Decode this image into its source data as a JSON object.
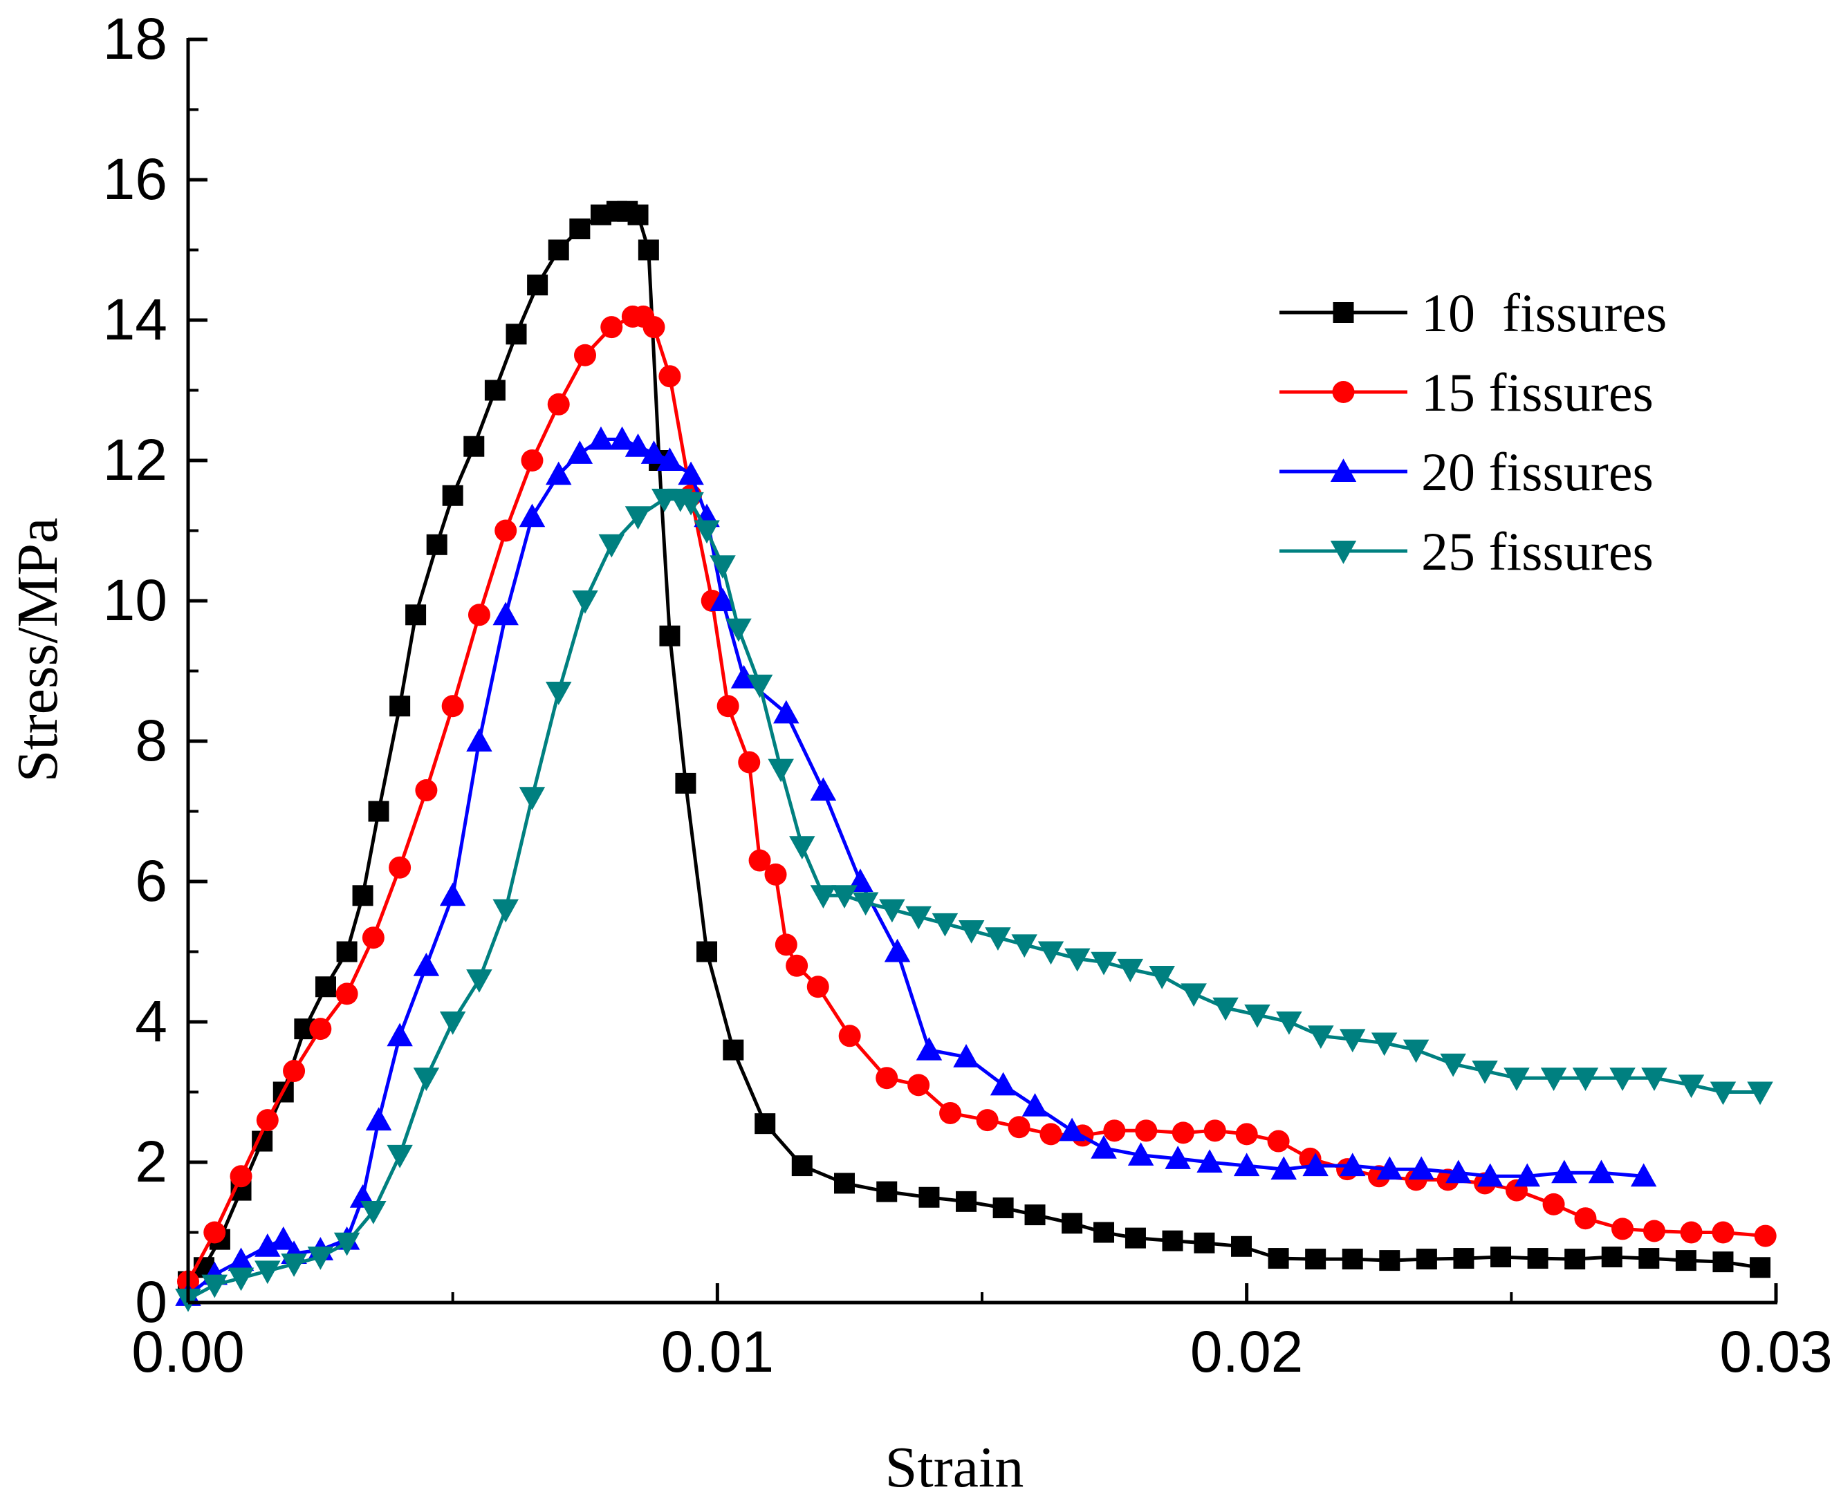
{
  "chart_data": {
    "type": "line",
    "title": "",
    "xlabel": "Strain",
    "ylabel": "Stress/MPa",
    "xlim": [
      0,
      0.03
    ],
    "ylim": [
      0,
      18
    ],
    "xticks": [
      0,
      0.01,
      0.02,
      0.03
    ],
    "xtick_labels": [
      "0.00",
      "0.01",
      "0.02",
      "0.03"
    ],
    "yticks": [
      0,
      2,
      4,
      6,
      8,
      10,
      12,
      14,
      16,
      18
    ],
    "ytick_labels": [
      "0",
      "2",
      "4",
      "6",
      "8",
      "10",
      "12",
      "14",
      "16",
      "18"
    ],
    "grid": false,
    "legend_position": "top-right",
    "series": [
      {
        "name": "10  fissures",
        "color": "#000000",
        "marker": "square",
        "x": [
          0.0,
          0.0003,
          0.0006,
          0.001,
          0.0014,
          0.0018,
          0.0022,
          0.0026,
          0.003,
          0.0033,
          0.0036,
          0.004,
          0.0043,
          0.0047,
          0.005,
          0.0054,
          0.0058,
          0.0062,
          0.0066,
          0.007,
          0.0074,
          0.0078,
          0.0081,
          0.0083,
          0.0085,
          0.0087,
          0.0089,
          0.0091,
          0.0094,
          0.0098,
          0.0103,
          0.0109,
          0.0116,
          0.0124,
          0.0132,
          0.014,
          0.0147,
          0.0154,
          0.016,
          0.0167,
          0.0173,
          0.0179,
          0.0186,
          0.0192,
          0.0199,
          0.0206,
          0.0213,
          0.022,
          0.0227,
          0.0234,
          0.0241,
          0.0248,
          0.0255,
          0.0262,
          0.0269,
          0.0276,
          0.0283,
          0.029,
          0.0297
        ],
        "y": [
          0.3,
          0.5,
          0.9,
          1.6,
          2.3,
          3.0,
          3.9,
          4.5,
          5.0,
          5.8,
          7.0,
          8.5,
          9.8,
          10.8,
          11.5,
          12.2,
          13.0,
          13.8,
          14.5,
          15.0,
          15.3,
          15.5,
          15.55,
          15.55,
          15.5,
          15.0,
          12.0,
          9.5,
          7.4,
          5.0,
          3.6,
          2.55,
          1.95,
          1.7,
          1.58,
          1.5,
          1.44,
          1.35,
          1.25,
          1.13,
          1.0,
          0.92,
          0.88,
          0.85,
          0.8,
          0.63,
          0.62,
          0.62,
          0.6,
          0.62,
          0.63,
          0.65,
          0.63,
          0.62,
          0.65,
          0.63,
          0.6,
          0.58,
          0.5
        ]
      },
      {
        "name": "15 fissures",
        "color": "#ff0000",
        "marker": "circle",
        "x": [
          0.0,
          0.0005,
          0.001,
          0.0015,
          0.002,
          0.0025,
          0.003,
          0.0035,
          0.004,
          0.0045,
          0.005,
          0.0055,
          0.006,
          0.0065,
          0.007,
          0.0075,
          0.008,
          0.0084,
          0.0086,
          0.0088,
          0.0091,
          0.0095,
          0.0099,
          0.0102,
          0.0106,
          0.0108,
          0.0111,
          0.0113,
          0.0115,
          0.0119,
          0.0125,
          0.0132,
          0.0138,
          0.0144,
          0.0151,
          0.0157,
          0.0163,
          0.0169,
          0.0175,
          0.0181,
          0.0188,
          0.0194,
          0.02,
          0.0206,
          0.0212,
          0.0219,
          0.0225,
          0.0232,
          0.0238,
          0.0245,
          0.0251,
          0.0258,
          0.0264,
          0.0271,
          0.0277,
          0.0284,
          0.029,
          0.0298
        ],
        "y": [
          0.3,
          1.0,
          1.8,
          2.6,
          3.3,
          3.9,
          4.4,
          5.2,
          6.2,
          7.3,
          8.5,
          9.8,
          11.0,
          12.0,
          12.8,
          13.5,
          13.9,
          14.05,
          14.05,
          13.9,
          13.2,
          11.5,
          10.0,
          8.5,
          7.7,
          6.3,
          6.1,
          5.1,
          4.8,
          4.5,
          3.8,
          3.2,
          3.1,
          2.7,
          2.6,
          2.5,
          2.4,
          2.38,
          2.45,
          2.45,
          2.42,
          2.45,
          2.4,
          2.3,
          2.05,
          1.9,
          1.8,
          1.75,
          1.75,
          1.7,
          1.6,
          1.4,
          1.2,
          1.05,
          1.02,
          1.0,
          1.0,
          0.95
        ]
      },
      {
        "name": "20 fissures",
        "color": "#0000ff",
        "marker": "triangle-up",
        "x": [
          0.0,
          0.0005,
          0.001,
          0.0015,
          0.0018,
          0.002,
          0.0025,
          0.003,
          0.0033,
          0.0036,
          0.004,
          0.0045,
          0.005,
          0.0055,
          0.006,
          0.0065,
          0.007,
          0.0074,
          0.0078,
          0.0082,
          0.0085,
          0.0088,
          0.0091,
          0.0095,
          0.0098,
          0.0101,
          0.0105,
          0.0113,
          0.012,
          0.0127,
          0.0134,
          0.014,
          0.0147,
          0.0154,
          0.016,
          0.0167,
          0.0173,
          0.018,
          0.0187,
          0.0193,
          0.02,
          0.0207,
          0.0213,
          0.022,
          0.0227,
          0.0233,
          0.024,
          0.0246,
          0.0253,
          0.026,
          0.0267,
          0.0275
        ],
        "y": [
          0.1,
          0.4,
          0.6,
          0.8,
          0.9,
          0.7,
          0.75,
          0.9,
          1.5,
          2.6,
          3.8,
          4.8,
          5.8,
          8.0,
          9.8,
          11.2,
          11.8,
          12.1,
          12.3,
          12.3,
          12.2,
          12.1,
          12.0,
          11.8,
          11.2,
          10.0,
          8.9,
          8.4,
          7.3,
          6.0,
          5.0,
          3.6,
          3.5,
          3.1,
          2.8,
          2.45,
          2.2,
          2.1,
          2.05,
          2.0,
          1.95,
          1.9,
          1.95,
          1.95,
          1.9,
          1.9,
          1.85,
          1.8,
          1.8,
          1.85,
          1.85,
          1.8
        ]
      },
      {
        "name": "25 fissures",
        "color": "#008080",
        "marker": "triangle-down",
        "x": [
          0.0,
          0.0005,
          0.001,
          0.0015,
          0.002,
          0.0025,
          0.003,
          0.0035,
          0.004,
          0.0045,
          0.005,
          0.0055,
          0.006,
          0.0065,
          0.007,
          0.0075,
          0.008,
          0.0085,
          0.009,
          0.0093,
          0.0095,
          0.0098,
          0.0101,
          0.0104,
          0.0108,
          0.0112,
          0.0116,
          0.012,
          0.0124,
          0.0128,
          0.0133,
          0.0138,
          0.0143,
          0.0148,
          0.0153,
          0.0158,
          0.0163,
          0.0168,
          0.0173,
          0.0178,
          0.0184,
          0.019,
          0.0196,
          0.0202,
          0.0208,
          0.0214,
          0.022,
          0.0226,
          0.0232,
          0.0239,
          0.0245,
          0.0251,
          0.0258,
          0.0264,
          0.0271,
          0.0277,
          0.0284,
          0.029,
          0.0297
        ],
        "y": [
          0.05,
          0.25,
          0.35,
          0.45,
          0.55,
          0.65,
          0.85,
          1.3,
          2.1,
          3.2,
          4.0,
          4.6,
          5.6,
          7.2,
          8.7,
          10.0,
          10.8,
          11.2,
          11.45,
          11.45,
          11.4,
          11.0,
          10.5,
          9.6,
          8.8,
          7.6,
          6.5,
          5.8,
          5.8,
          5.7,
          5.6,
          5.5,
          5.4,
          5.3,
          5.2,
          5.1,
          5.0,
          4.9,
          4.85,
          4.75,
          4.65,
          4.4,
          4.2,
          4.1,
          4.0,
          3.8,
          3.75,
          3.7,
          3.6,
          3.4,
          3.3,
          3.2,
          3.2,
          3.2,
          3.2,
          3.2,
          3.1,
          3.0,
          3.0
        ]
      }
    ]
  }
}
